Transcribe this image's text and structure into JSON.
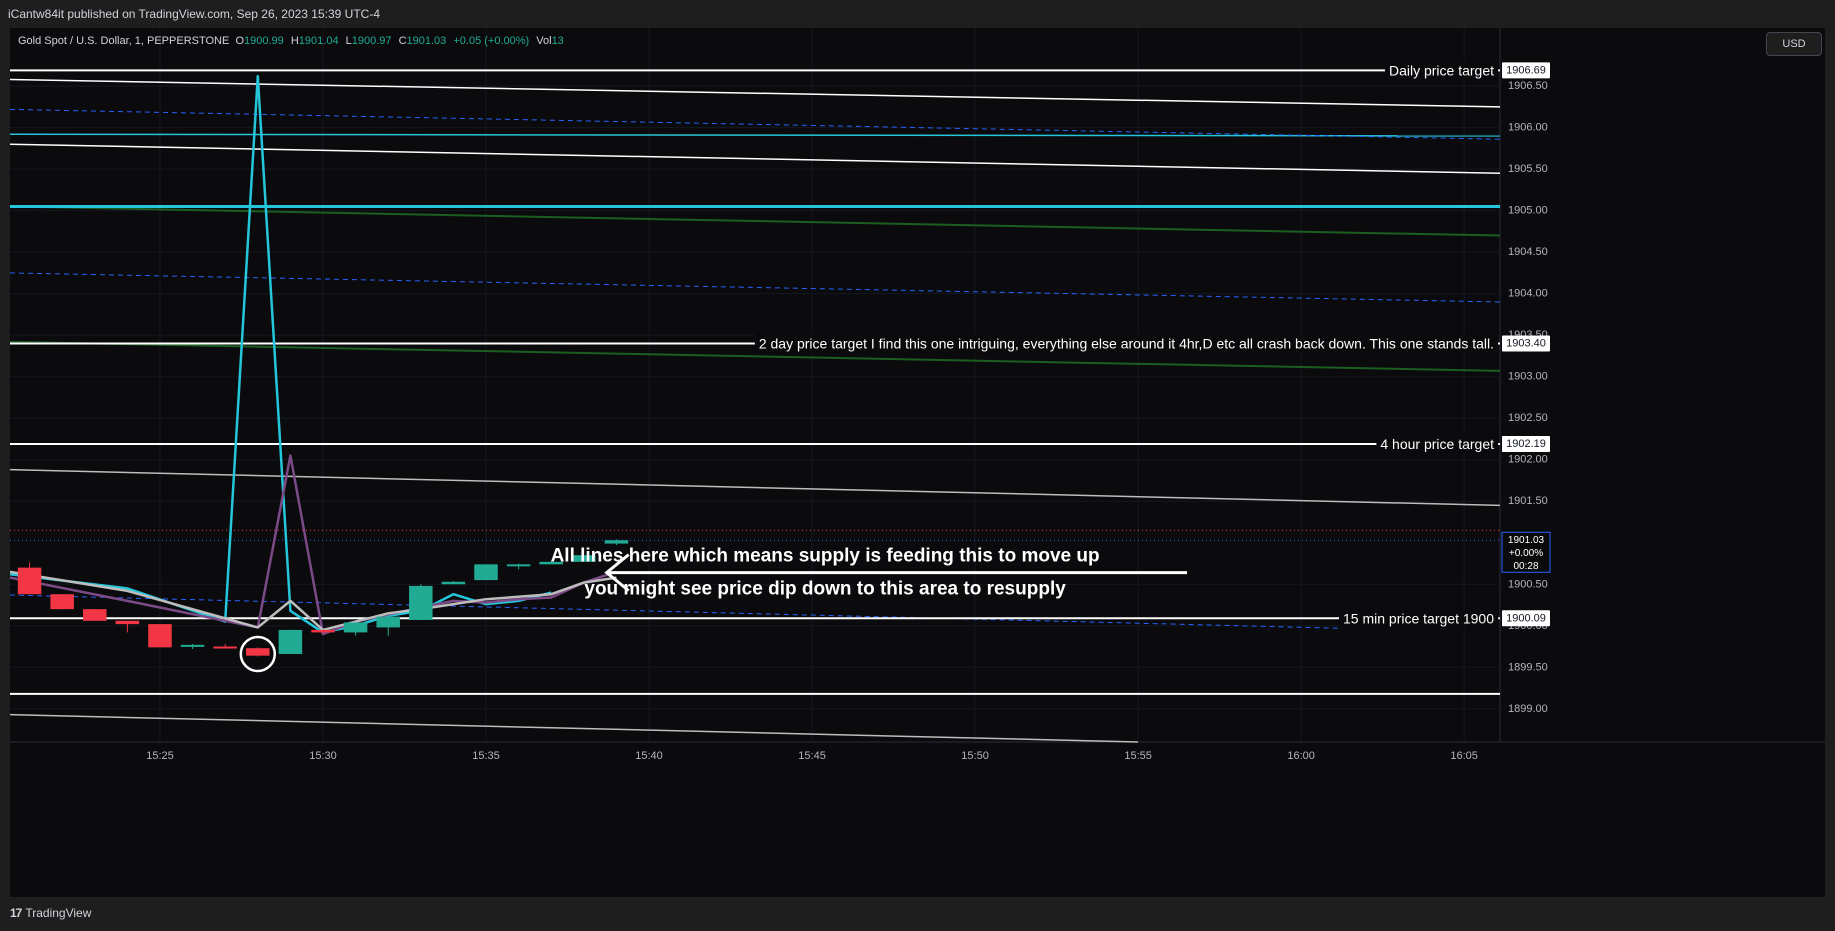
{
  "header": {
    "published": "iCantw84it published on TradingView.com, Sep 26, 2023 15:39 UTC-4"
  },
  "legend": {
    "symbol": "Gold Spot / U.S. Dollar, 1, PEPPERSTONE",
    "o_label": "O",
    "o_value": "1900.99",
    "h_label": "H",
    "h_value": "1901.04",
    "l_label": "L",
    "l_value": "1900.97",
    "c_label": "C",
    "c_value": "1901.03",
    "change": "+0.05 (+0.00%)",
    "vol_label": "Vol",
    "vol_value": "13"
  },
  "currency_button": "USD",
  "footer": {
    "brand": "TradingView"
  },
  "colors": {
    "bg": "#0b0b0e",
    "up": "#22ab94",
    "down": "#f23645",
    "white": "#ffffff",
    "cyan": "#26c6da",
    "blue_dashed": "#2962ff",
    "green": "#1b5e20",
    "purple": "#7b4a87",
    "grey": "#bdbdbd"
  },
  "chart_data": {
    "type": "candlestick",
    "x_axis": {
      "ticks": [
        "15:25",
        "15:30",
        "15:35",
        "15:40",
        "15:45",
        "15:50",
        "15:55",
        "16:00",
        "16:05"
      ],
      "tick_minutes": [
        25,
        30,
        35,
        40,
        45,
        50,
        55,
        60,
        65
      ],
      "range_minutes": [
        20.4,
        66.1
      ]
    },
    "y_axis": {
      "ticks": [
        "1906.50",
        "1906.00",
        "1905.50",
        "1905.00",
        "1904.50",
        "1904.00",
        "1903.50",
        "1903.00",
        "1902.50",
        "1902.00",
        "1901.50",
        "1900.50",
        "1900.00",
        "1899.50",
        "1899.00"
      ],
      "tick_values": [
        1906.5,
        1906.0,
        1905.5,
        1905.0,
        1904.5,
        1904.0,
        1903.5,
        1903.0,
        1902.5,
        1902.0,
        1901.5,
        1900.5,
        1900.0,
        1899.5,
        1899.0
      ],
      "range": [
        1898.6,
        1907.2
      ]
    },
    "candles": [
      {
        "t": 21,
        "o": 1900.7,
        "h": 1900.76,
        "l": 1900.38,
        "c": 1900.38
      },
      {
        "t": 22,
        "o": 1900.38,
        "h": 1900.38,
        "l": 1900.2,
        "c": 1900.2
      },
      {
        "t": 23,
        "o": 1900.2,
        "h": 1900.2,
        "l": 1900.06,
        "c": 1900.06
      },
      {
        "t": 24,
        "o": 1900.06,
        "h": 1900.06,
        "l": 1899.92,
        "c": 1900.02
      },
      {
        "t": 25,
        "o": 1900.02,
        "h": 1900.02,
        "l": 1899.74,
        "c": 1899.74
      },
      {
        "t": 26,
        "o": 1899.75,
        "h": 1899.78,
        "l": 1899.72,
        "c": 1899.77
      },
      {
        "t": 27,
        "o": 1899.75,
        "h": 1899.78,
        "l": 1899.73,
        "c": 1899.74
      },
      {
        "t": 28,
        "o": 1899.73,
        "h": 1899.74,
        "l": 1899.63,
        "c": 1899.64
      },
      {
        "t": 29,
        "o": 1899.66,
        "h": 1899.95,
        "l": 1899.66,
        "c": 1899.95
      },
      {
        "t": 30,
        "o": 1899.95,
        "h": 1899.95,
        "l": 1899.91,
        "c": 1899.92
      },
      {
        "t": 31,
        "o": 1899.92,
        "h": 1900.04,
        "l": 1899.88,
        "c": 1900.04
      },
      {
        "t": 32,
        "o": 1899.98,
        "h": 1900.14,
        "l": 1899.88,
        "c": 1900.11
      },
      {
        "t": 33,
        "o": 1900.07,
        "h": 1900.5,
        "l": 1900.07,
        "c": 1900.48
      },
      {
        "t": 34,
        "o": 1900.5,
        "h": 1900.54,
        "l": 1900.5,
        "c": 1900.53
      },
      {
        "t": 35,
        "o": 1900.55,
        "h": 1900.74,
        "l": 1900.55,
        "c": 1900.74
      },
      {
        "t": 36,
        "o": 1900.73,
        "h": 1900.75,
        "l": 1900.68,
        "c": 1900.74
      },
      {
        "t": 37,
        "o": 1900.74,
        "h": 1900.78,
        "l": 1900.74,
        "c": 1900.77
      },
      {
        "t": 38,
        "o": 1900.77,
        "h": 1900.85,
        "l": 1900.77,
        "c": 1900.85
      },
      {
        "t": 39,
        "o": 1900.99,
        "h": 1901.04,
        "l": 1900.97,
        "c": 1901.03
      }
    ],
    "overlay_lines": [
      {
        "color": "#26c6da",
        "points": [
          [
            20.4,
            1900.62
          ],
          [
            24,
            1900.45
          ],
          [
            27,
            1900.05
          ],
          [
            28,
            1906.62
          ],
          [
            29,
            1900.18
          ],
          [
            30,
            1899.92
          ],
          [
            31,
            1900.0
          ],
          [
            32,
            1900.12
          ],
          [
            33,
            1900.18
          ],
          [
            34,
            1900.38
          ],
          [
            35,
            1900.26
          ],
          [
            36,
            1900.3
          ],
          [
            37,
            1900.4
          ]
        ]
      },
      {
        "color": "#7b4a87",
        "points": [
          [
            20.4,
            1900.58
          ],
          [
            24,
            1900.3
          ],
          [
            28,
            1899.98
          ],
          [
            29,
            1902.05
          ],
          [
            30,
            1899.9
          ],
          [
            31,
            1900.05
          ],
          [
            33,
            1900.22
          ],
          [
            34,
            1900.3
          ],
          [
            35,
            1900.28
          ],
          [
            36,
            1900.32
          ],
          [
            37,
            1900.34
          ],
          [
            38,
            1900.52
          ],
          [
            39,
            1900.65
          ]
        ]
      },
      {
        "color": "#bdbdbd",
        "points": [
          [
            20.4,
            1900.65
          ],
          [
            24,
            1900.42
          ],
          [
            28,
            1899.98
          ],
          [
            29,
            1900.3
          ],
          [
            30,
            1899.95
          ],
          [
            32,
            1900.15
          ],
          [
            33,
            1900.2
          ],
          [
            35,
            1900.32
          ],
          [
            37,
            1900.38
          ],
          [
            38,
            1900.52
          ],
          [
            39,
            1900.58
          ]
        ]
      }
    ],
    "horizontal_lines": [
      {
        "y": 1906.69,
        "color": "#ffffff",
        "label": "Daily price target",
        "price_label": "1906.69"
      },
      {
        "y": 1905.05,
        "color": "#26c6da",
        "label": "",
        "price_label": ""
      },
      {
        "y": 1903.4,
        "color": "#ffffff",
        "label": "2 day price target I find this one intriguing, everything else around it 4hr,D  etc all crash back down.  This one stands tall.",
        "price_label": "1903.40"
      },
      {
        "y": 1902.19,
        "color": "#ffffff",
        "label": "4 hour price target",
        "price_label": "1902.19"
      },
      {
        "y": 1900.09,
        "color": "#ffffff",
        "label": "15 min price target 1900",
        "price_label": "1900.09"
      },
      {
        "y": 1899.18,
        "color": "#ffffff",
        "label": "",
        "price_label": ""
      }
    ],
    "trend_lines": [
      {
        "color": "#ffffff",
        "width": 1.5,
        "dash": false,
        "from": [
          20.4,
          1906.58
        ],
        "to": [
          66.1,
          1906.25
        ]
      },
      {
        "color": "#26c6da",
        "width": 1.5,
        "dash": false,
        "from": [
          20.4,
          1905.92
        ],
        "to": [
          66.1,
          1905.9
        ]
      },
      {
        "color": "#2962ff",
        "width": 1,
        "dash": true,
        "from": [
          20.4,
          1906.22
        ],
        "to": [
          66.1,
          1905.86
        ]
      },
      {
        "color": "#ffffff",
        "width": 1.5,
        "dash": false,
        "from": [
          20.4,
          1905.8
        ],
        "to": [
          66.1,
          1905.45
        ]
      },
      {
        "color": "#1b5e20",
        "width": 2,
        "dash": false,
        "from": [
          20.4,
          1905.05
        ],
        "to": [
          66.1,
          1904.7
        ]
      },
      {
        "color": "#2962ff",
        "width": 1,
        "dash": true,
        "from": [
          20.4,
          1904.25
        ],
        "to": [
          66.1,
          1903.9
        ]
      },
      {
        "color": "#1b5e20",
        "width": 2,
        "dash": false,
        "from": [
          20.4,
          1903.42
        ],
        "to": [
          66.1,
          1903.07
        ]
      },
      {
        "color": "#bdbdbd",
        "width": 1.5,
        "dash": false,
        "from": [
          20.4,
          1901.88
        ],
        "to": [
          66.1,
          1901.45
        ]
      },
      {
        "color": "#2962ff",
        "width": 1,
        "dash": true,
        "from": [
          20.4,
          1900.37
        ],
        "to": [
          61.2,
          1899.97
        ]
      },
      {
        "color": "#bdbdbd",
        "width": 1.5,
        "dash": false,
        "from": [
          20.4,
          1898.93
        ],
        "to": [
          55.0,
          1898.6
        ]
      }
    ],
    "reference_lines": [
      {
        "y": 1901.15,
        "color": "#f23645",
        "dash": "dotted"
      },
      {
        "y": 1901.03,
        "color": "#2962ff",
        "dash": "dotted"
      }
    ],
    "last_price": {
      "price": "1901.03",
      "change": "+0.00%",
      "countdown": "00:28",
      "y": 1901.03
    },
    "annotations": [
      {
        "text": "All lines here which means supply is feeding this to move up",
        "t": 45.4,
        "y": 1900.84
      },
      {
        "text": "you might see price dip down to this area to resupply",
        "t": 45.4,
        "y": 1900.44
      }
    ],
    "arrow": {
      "from": [
        38.7,
        1900.64
      ],
      "to": [
        56.5,
        1900.64
      ],
      "head_at": "from"
    },
    "circle": {
      "t": 28,
      "y": 1899.66
    }
  }
}
